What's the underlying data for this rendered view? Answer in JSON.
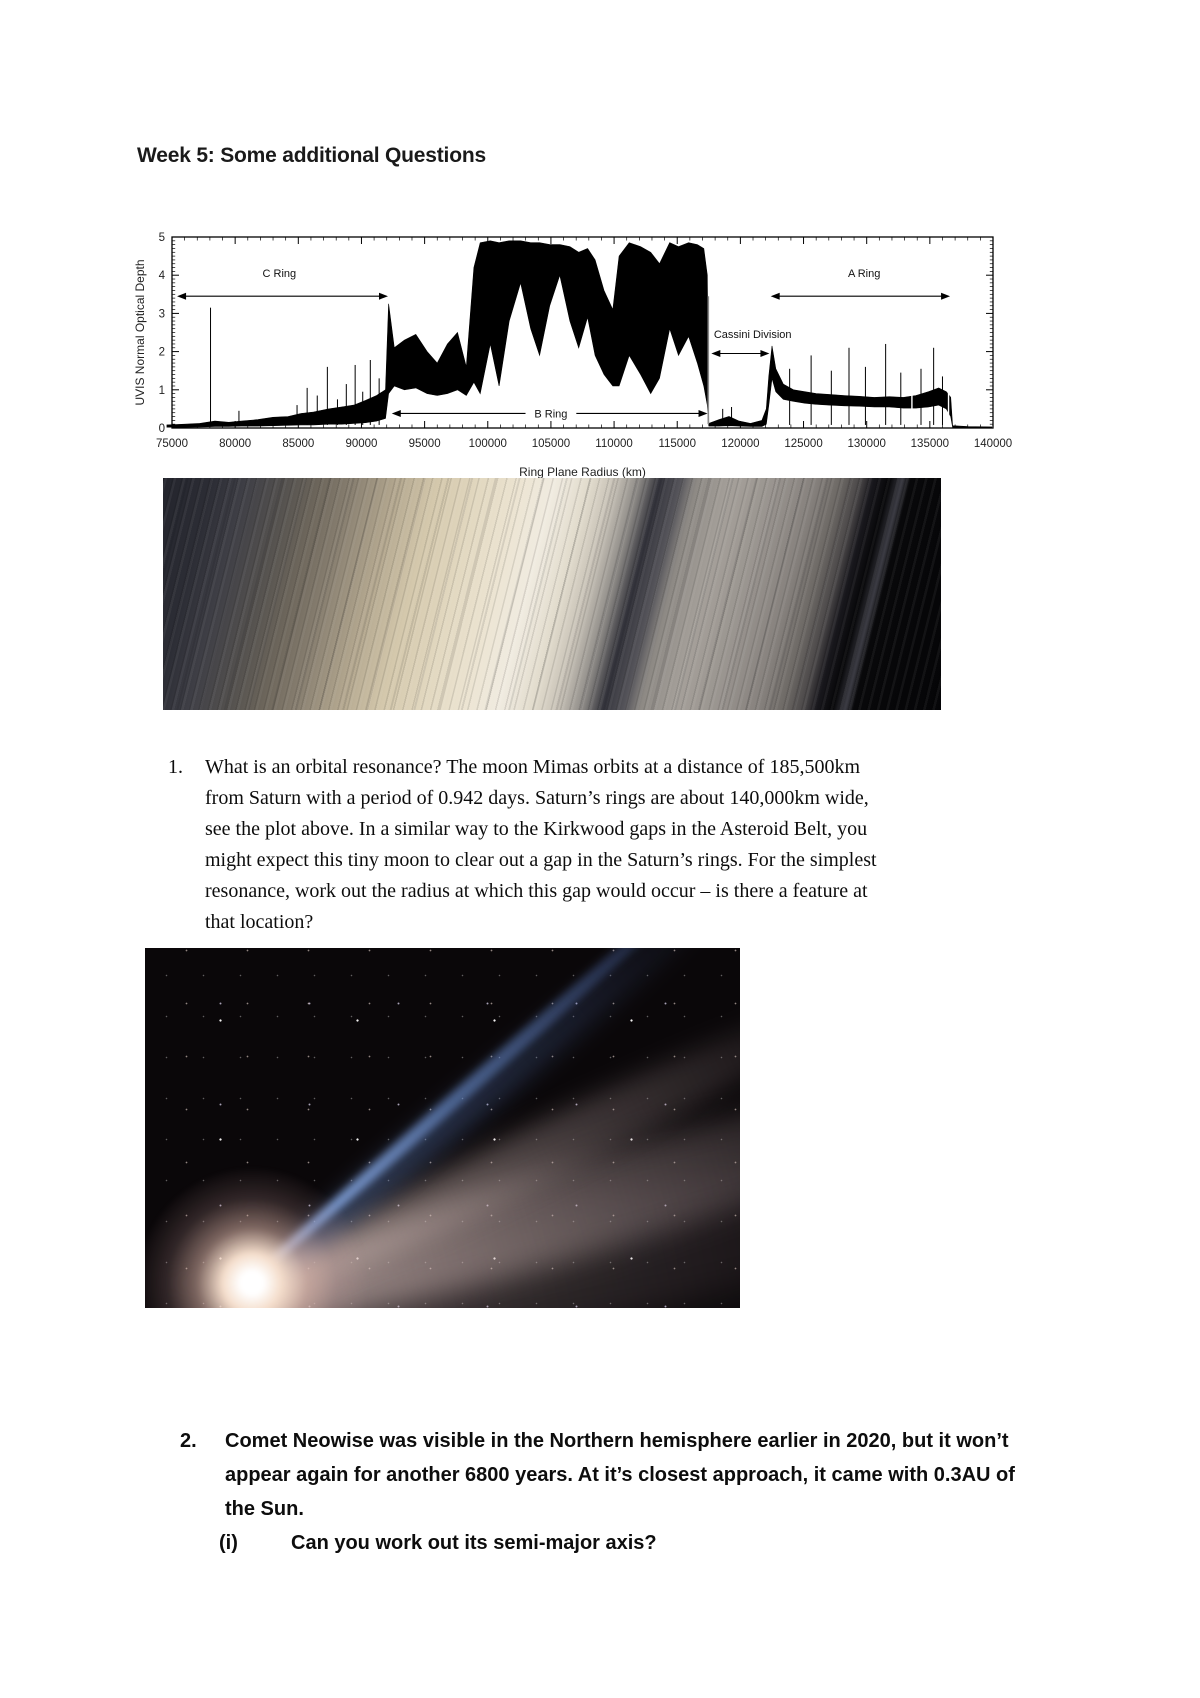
{
  "page": {
    "title": "Week 5: Some additional Questions"
  },
  "questions": {
    "q1": {
      "number": "1.",
      "lines": [
        "What is an orbital resonance? The moon Mimas orbits at a distance of 185,500km",
        "from Saturn with a period of 0.942 days.  Saturn’s rings are about 140,000km wide,",
        "see the plot above.  In a similar way to the Kirkwood gaps in the Asteroid Belt, you",
        "might expect this tiny moon to clear out a gap in the Saturn’s rings.  For the simplest",
        "resonance, work out the radius at which this gap would occur – is there a feature at",
        "that location?"
      ]
    },
    "q2": {
      "number": "2.",
      "lines": [
        "Comet Neowise was visible in the Northern hemisphere earlier in 2020, but it won’t",
        "appear again for another 6800 years.  At it’s closest approach, it came with 0.3AU of",
        "the Sun."
      ],
      "sub": {
        "label": "(i)",
        "text": "Can you work out its semi-major axis?"
      }
    }
  },
  "chart_data": {
    "type": "line",
    "xlabel": "Ring Plane Radius (km)",
    "ylabel": "UVIS Normal Optical Depth",
    "xlim": [
      75000,
      140000
    ],
    "ylim": [
      0,
      5
    ],
    "xticks": [
      75000,
      80000,
      85000,
      90000,
      95000,
      100000,
      105000,
      110000,
      115000,
      120000,
      125000,
      130000,
      135000,
      140000
    ],
    "yticks": [
      0,
      1,
      2,
      3,
      4,
      5
    ],
    "x_tick_step": 5000,
    "x_minor_step": 1000,
    "y_minor_step": 0.1,
    "line_color": "#000000",
    "annotations": [
      {
        "label": "C Ring",
        "text_r": 83500,
        "text_tau": 3.95,
        "arrow": [
          75400,
          92100
        ],
        "arrow_tau": 3.45
      },
      {
        "label": "B Ring",
        "text_r": 105000,
        "text_tau": 0.38,
        "arrow": [
          92400,
          117400
        ],
        "arrow_tau": 0.38,
        "inline": true
      },
      {
        "label": "Cassini Division",
        "text_r": 117900,
        "text_tau": 2.35,
        "arrow": [
          117700,
          122300
        ],
        "arrow_tau": 1.95,
        "anchor": "start"
      },
      {
        "label": "A Ring",
        "text_r": 129800,
        "text_tau": 3.95,
        "arrow": [
          122400,
          136600
        ],
        "arrow_tau": 3.45
      }
    ],
    "envelope": [
      [
        74600,
        0.02,
        0.08
      ],
      [
        76000,
        0.02,
        0.1
      ],
      [
        77200,
        0.03,
        0.12
      ],
      [
        78400,
        0.04,
        0.18
      ],
      [
        79500,
        0.04,
        0.15
      ],
      [
        80500,
        0.05,
        0.18
      ],
      [
        81800,
        0.05,
        0.22
      ],
      [
        83000,
        0.06,
        0.28
      ],
      [
        84200,
        0.07,
        0.3
      ],
      [
        85200,
        0.08,
        0.38
      ],
      [
        86200,
        0.08,
        0.42
      ],
      [
        87400,
        0.1,
        0.5
      ],
      [
        88400,
        0.1,
        0.55
      ],
      [
        89400,
        0.12,
        0.6
      ],
      [
        90300,
        0.14,
        0.72
      ],
      [
        91200,
        0.18,
        0.85
      ],
      [
        91900,
        0.25,
        1.0
      ],
      [
        92150,
        0.9,
        3.25
      ],
      [
        92600,
        1.1,
        2.1
      ],
      [
        93400,
        1.0,
        2.3
      ],
      [
        94300,
        1.05,
        2.45
      ],
      [
        95200,
        0.9,
        2.0
      ],
      [
        96000,
        0.85,
        1.7
      ],
      [
        96800,
        0.9,
        2.2
      ],
      [
        97600,
        1.0,
        2.5
      ],
      [
        98300,
        0.85,
        1.6
      ],
      [
        98900,
        1.2,
        4.2
      ],
      [
        99400,
        0.9,
        4.85
      ],
      [
        100200,
        2.2,
        4.9
      ],
      [
        100900,
        1.1,
        4.85
      ],
      [
        101700,
        2.8,
        4.9
      ],
      [
        102600,
        3.8,
        4.9
      ],
      [
        103400,
        2.6,
        4.85
      ],
      [
        104100,
        1.9,
        4.85
      ],
      [
        104900,
        3.2,
        4.8
      ],
      [
        105700,
        4.0,
        4.8
      ],
      [
        106500,
        2.8,
        4.75
      ],
      [
        107200,
        2.1,
        4.6
      ],
      [
        107900,
        2.9,
        4.7
      ],
      [
        108500,
        1.9,
        4.4
      ],
      [
        109200,
        1.4,
        3.6
      ],
      [
        109900,
        1.1,
        3.1
      ],
      [
        110400,
        1.1,
        4.5
      ],
      [
        111200,
        1.9,
        4.85
      ],
      [
        112100,
        1.4,
        4.75
      ],
      [
        112900,
        0.9,
        4.6
      ],
      [
        113600,
        1.3,
        4.3
      ],
      [
        114400,
        2.6,
        4.85
      ],
      [
        115100,
        1.9,
        4.75
      ],
      [
        115900,
        2.4,
        4.85
      ],
      [
        116600,
        1.7,
        4.8
      ],
      [
        117100,
        1.1,
        4.7
      ],
      [
        117380,
        0.6,
        4.0
      ],
      [
        117500,
        0.05,
        0.12
      ],
      [
        118300,
        0.05,
        0.22
      ],
      [
        119100,
        0.06,
        0.3
      ],
      [
        119900,
        0.05,
        0.18
      ],
      [
        120800,
        0.04,
        0.12
      ],
      [
        121700,
        0.04,
        0.2
      ],
      [
        122050,
        0.1,
        0.5
      ],
      [
        122250,
        0.6,
        1.35
      ],
      [
        122500,
        1.3,
        2.15
      ],
      [
        122800,
        0.95,
        1.55
      ],
      [
        123400,
        0.75,
        1.15
      ],
      [
        124200,
        0.7,
        1.0
      ],
      [
        125100,
        0.65,
        0.95
      ],
      [
        126000,
        0.62,
        0.9
      ],
      [
        127000,
        0.6,
        0.88
      ],
      [
        128200,
        0.58,
        0.85
      ],
      [
        129400,
        0.57,
        0.83
      ],
      [
        130600,
        0.55,
        0.8
      ],
      [
        131800,
        0.55,
        0.82
      ],
      [
        132900,
        0.52,
        0.8
      ],
      [
        133900,
        0.52,
        0.85
      ],
      [
        134900,
        0.55,
        0.95
      ],
      [
        135700,
        0.6,
        1.05
      ],
      [
        136300,
        0.5,
        0.95
      ],
      [
        136650,
        0.3,
        0.8
      ],
      [
        136800,
        0.02,
        0.06
      ],
      [
        138000,
        0.01,
        0.04
      ],
      [
        139900,
        0.01,
        0.03
      ]
    ],
    "spikes": [
      [
        78050,
        3.15
      ],
      [
        80300,
        0.45
      ],
      [
        84900,
        0.6
      ],
      [
        85700,
        1.05
      ],
      [
        86500,
        0.85
      ],
      [
        87300,
        1.6
      ],
      [
        88100,
        0.75
      ],
      [
        88800,
        1.15
      ],
      [
        89500,
        1.65
      ],
      [
        90100,
        0.95
      ],
      [
        90700,
        1.78
      ],
      [
        91400,
        1.3
      ],
      [
        118600,
        0.5
      ],
      [
        119300,
        0.55
      ],
      [
        123900,
        1.55
      ],
      [
        125600,
        1.9
      ],
      [
        127200,
        1.5
      ],
      [
        128600,
        2.1
      ],
      [
        129900,
        1.6
      ],
      [
        131500,
        2.2
      ],
      [
        132700,
        1.45
      ],
      [
        134300,
        1.55
      ],
      [
        135300,
        2.1
      ],
      [
        136000,
        1.35
      ]
    ],
    "gray_spikes": [
      [
        117460,
        3.45
      ]
    ],
    "down_spikes": [
      133580,
      136480
    ]
  }
}
